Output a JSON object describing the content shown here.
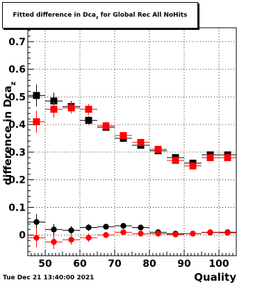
{
  "chart_data": {
    "type": "scatter",
    "title": {
      "prefix": "Fitted difference in Dca",
      "subscript": "z",
      "suffix": "for Global Rec All NoHits"
    },
    "xlabel": "Quality",
    "ylabel": {
      "prefix": "difference in Dca",
      "subscript": "z"
    },
    "xlim": [
      45,
      105
    ],
    "ylim": [
      -0.075,
      0.75
    ],
    "x_ticks": [
      50,
      60,
      70,
      80,
      90,
      100
    ],
    "y_ticks": [
      0,
      0.1,
      0.2,
      0.3,
      0.4,
      0.5,
      0.6,
      0.7
    ],
    "y_tick_labels": [
      "0",
      "0.1",
      "0.2",
      "0.3",
      "0.4",
      "0.5",
      "0.6",
      "0.7"
    ],
    "grid": true,
    "series": [
      {
        "marker": "square",
        "color": "#000000",
        "points": [
          {
            "x": 47.5,
            "y": 0.505,
            "yerr": 0.04
          },
          {
            "x": 52.5,
            "y": 0.485,
            "yerr": 0.03
          },
          {
            "x": 57.5,
            "y": 0.465,
            "yerr": 0.02
          },
          {
            "x": 62.5,
            "y": 0.415,
            "yerr": 0.015
          },
          {
            "x": 67.5,
            "y": 0.39,
            "yerr": 0.01
          },
          {
            "x": 72.5,
            "y": 0.35,
            "yerr": 0.008
          },
          {
            "x": 77.5,
            "y": 0.325,
            "yerr": 0.008
          },
          {
            "x": 82.5,
            "y": 0.305,
            "yerr": 0.008
          },
          {
            "x": 87.5,
            "y": 0.28,
            "yerr": 0.008
          },
          {
            "x": 92.5,
            "y": 0.26,
            "yerr": 0.008
          },
          {
            "x": 97.5,
            "y": 0.29,
            "yerr": 0.008
          },
          {
            "x": 102.5,
            "y": 0.29,
            "yerr": 0.008
          }
        ]
      },
      {
        "marker": "square",
        "color": "#ff0000",
        "points": [
          {
            "x": 47.5,
            "y": 0.41,
            "yerr": 0.04
          },
          {
            "x": 52.5,
            "y": 0.455,
            "yerr": 0.03
          },
          {
            "x": 57.5,
            "y": 0.46,
            "yerr": 0.02
          },
          {
            "x": 62.5,
            "y": 0.455,
            "yerr": 0.02
          },
          {
            "x": 67.5,
            "y": 0.395,
            "yerr": 0.015
          },
          {
            "x": 72.5,
            "y": 0.36,
            "yerr": 0.01
          },
          {
            "x": 77.5,
            "y": 0.335,
            "yerr": 0.01
          },
          {
            "x": 82.5,
            "y": 0.31,
            "yerr": 0.01
          },
          {
            "x": 87.5,
            "y": 0.27,
            "yerr": 0.01
          },
          {
            "x": 92.5,
            "y": 0.25,
            "yerr": 0.01
          },
          {
            "x": 97.5,
            "y": 0.28,
            "yerr": 0.01
          },
          {
            "x": 102.5,
            "y": 0.28,
            "yerr": 0.01
          }
        ]
      },
      {
        "marker": "circle",
        "color": "#000000",
        "points": [
          {
            "x": 47.5,
            "y": 0.047,
            "yerr": 0.03
          },
          {
            "x": 52.5,
            "y": 0.02,
            "yerr": 0.02
          },
          {
            "x": 57.5,
            "y": 0.017,
            "yerr": 0.015
          },
          {
            "x": 62.5,
            "y": 0.027,
            "yerr": 0.012
          },
          {
            "x": 67.5,
            "y": 0.03,
            "yerr": 0.01
          },
          {
            "x": 72.5,
            "y": 0.033,
            "yerr": 0.008
          },
          {
            "x": 77.5,
            "y": 0.027,
            "yerr": 0.006
          },
          {
            "x": 82.5,
            "y": 0.01,
            "yerr": 0.006
          },
          {
            "x": 87.5,
            "y": 0.005,
            "yerr": 0.005
          },
          {
            "x": 92.5,
            "y": 0.005,
            "yerr": 0.005
          },
          {
            "x": 97.5,
            "y": 0.009,
            "yerr": 0.005
          },
          {
            "x": 102.5,
            "y": 0.01,
            "yerr": 0.005
          }
        ]
      },
      {
        "marker": "circle",
        "color": "#ff0000",
        "points": [
          {
            "x": 47.5,
            "y": -0.01,
            "yerr": 0.035
          },
          {
            "x": 52.5,
            "y": -0.025,
            "yerr": 0.025
          },
          {
            "x": 57.5,
            "y": -0.017,
            "yerr": 0.018
          },
          {
            "x": 62.5,
            "y": -0.01,
            "yerr": 0.015
          },
          {
            "x": 67.5,
            "y": 0.0,
            "yerr": 0.01
          },
          {
            "x": 72.5,
            "y": 0.01,
            "yerr": 0.008
          },
          {
            "x": 77.5,
            "y": 0.005,
            "yerr": 0.006
          },
          {
            "x": 82.5,
            "y": 0.005,
            "yerr": 0.005
          },
          {
            "x": 87.5,
            "y": 0.002,
            "yerr": 0.005
          },
          {
            "x": 92.5,
            "y": 0.005,
            "yerr": 0.005
          },
          {
            "x": 97.5,
            "y": 0.01,
            "yerr": 0.005
          },
          {
            "x": 102.5,
            "y": 0.008,
            "yerr": 0.005
          }
        ]
      }
    ]
  },
  "timestamp": "Tue Dec 21 13:40:00 2021"
}
